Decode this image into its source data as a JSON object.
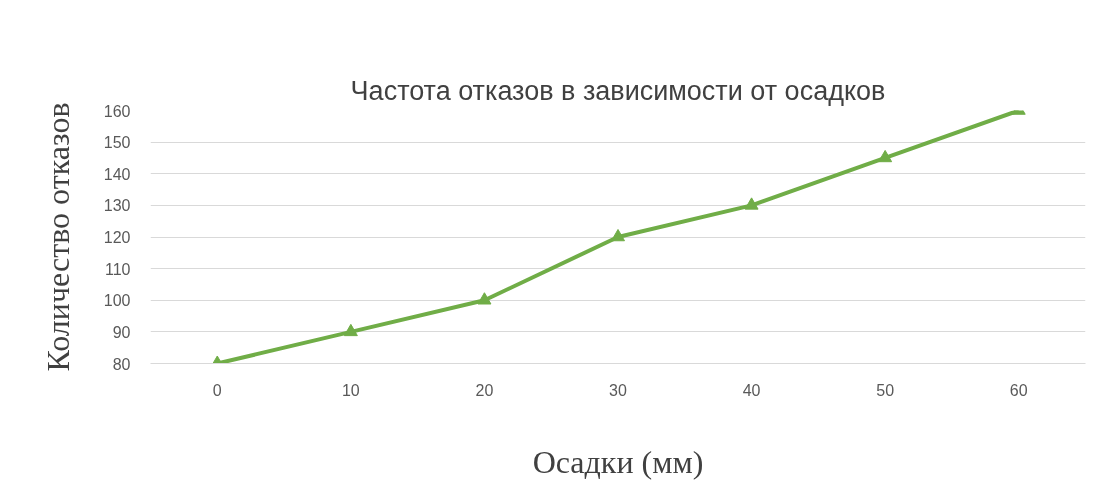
{
  "chart_data": {
    "type": "line",
    "title": "Частота отказов в зависимости от осадков",
    "xlabel": "Осадки (мм)",
    "ylabel": "Количество отказов",
    "categories": [
      "0",
      "10",
      "20",
      "30",
      "40",
      "50",
      "60"
    ],
    "series": [
      {
        "color": "#70ad47",
        "values": [
          80,
          90,
          100,
          120,
          130,
          145,
          160
        ]
      }
    ],
    "ylim": [
      80,
      160
    ],
    "yticks": [
      80,
      90,
      100,
      110,
      120,
      130,
      140,
      150,
      160
    ],
    "grid": "y",
    "marker": "triangle",
    "line_style": "solid"
  }
}
